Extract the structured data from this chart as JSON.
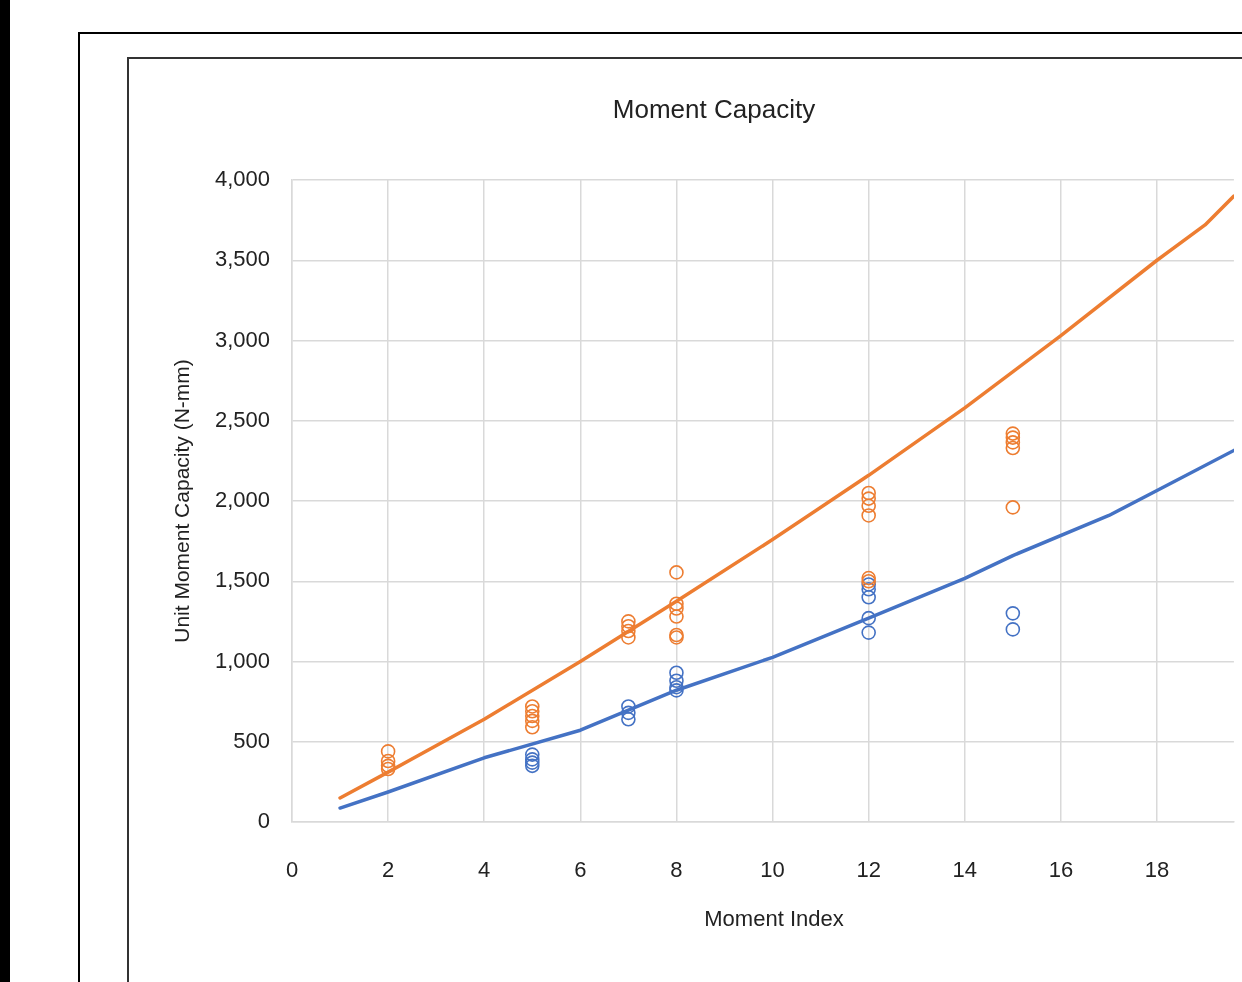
{
  "chart_data": {
    "type": "scatter",
    "title": "Moment Capacity",
    "xlabel": "Moment Index",
    "ylabel": "Unit Moment Capacity (N-mm)",
    "xlim": [
      0,
      19.6
    ],
    "xticks": [
      0,
      2,
      4,
      6,
      8,
      10,
      12,
      14,
      16,
      18
    ],
    "ylim": [
      0,
      4000
    ],
    "yticks": [
      {
        "value": 0,
        "label": "0"
      },
      {
        "value": 500,
        "label": "500"
      },
      {
        "value": 1000,
        "label": "1,000"
      },
      {
        "value": 1500,
        "label": "1,500"
      },
      {
        "value": 2000,
        "label": "2,000"
      },
      {
        "value": 2500,
        "label": "2,500"
      },
      {
        "value": 3000,
        "label": "3,000"
      },
      {
        "value": 3500,
        "label": "3,500"
      },
      {
        "value": 4000,
        "label": "4,000"
      }
    ],
    "grid": true,
    "legend": false,
    "marker": "circle",
    "series": [
      {
        "type": "line",
        "color": "#ed7d31",
        "marker": "none",
        "x": [
          1,
          2,
          4,
          6,
          8,
          10,
          12,
          14,
          16,
          18,
          19,
          19.6
        ],
        "values": [
          150,
          311,
          640,
          1000,
          1375,
          1760,
          2160,
          2580,
          3030,
          3500,
          3720,
          3900
        ]
      },
      {
        "type": "line",
        "color": "#4472c4",
        "marker": "none",
        "x": [
          1,
          2,
          4,
          6,
          8,
          10,
          12,
          14,
          15,
          17,
          18,
          19.6
        ],
        "values": [
          87,
          187,
          400,
          572,
          821,
          1026,
          1270,
          1518,
          1660,
          1910,
          2065,
          2315
        ]
      },
      {
        "color": "#ed7d31",
        "x": [
          2,
          2,
          2,
          2,
          5,
          5,
          5,
          5,
          5,
          7,
          7,
          7,
          7,
          8,
          8,
          8,
          8,
          8,
          8,
          12,
          12,
          12,
          12,
          12,
          12,
          15,
          15,
          15,
          15,
          15
        ],
        "values": [
          440,
          380,
          350,
          330,
          720,
          690,
          660,
          630,
          590,
          1250,
          1220,
          1190,
          1150,
          1555,
          1360,
          1330,
          1280,
          1165,
          1150,
          2050,
          2015,
          1970,
          1910,
          1520,
          1500,
          2420,
          2395,
          2365,
          2330,
          1960
        ]
      },
      {
        "color": "#4472c4",
        "x": [
          5,
          5,
          5,
          5,
          7,
          7,
          7,
          8,
          8,
          8,
          8,
          12,
          12,
          12,
          12,
          12,
          15,
          15
        ],
        "values": [
          420,
          390,
          370,
          350,
          720,
          680,
          640,
          930,
          880,
          840,
          820,
          1480,
          1450,
          1400,
          1270,
          1180,
          1300,
          1200
        ]
      }
    ]
  }
}
